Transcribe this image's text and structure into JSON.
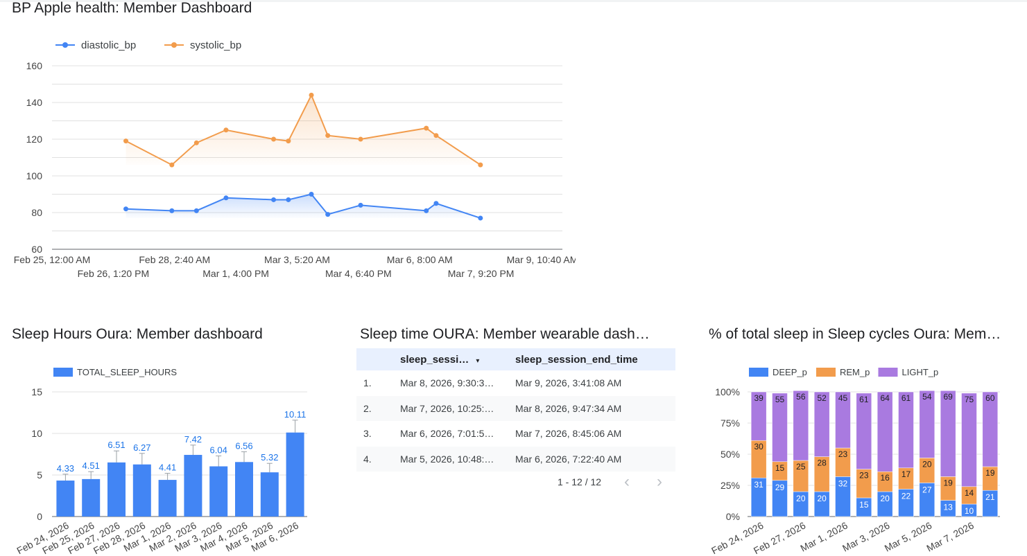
{
  "bp_chart": {
    "title": "BP Apple health: Member Dashboard",
    "chart_data": {
      "type": "line",
      "title": "BP Apple health: Member Dashboard",
      "y_ticks": [
        60,
        80,
        100,
        120,
        140,
        160
      ],
      "ylim": [
        60,
        160
      ],
      "x_tick_labels": [
        "Feb 25, 12:00 AM",
        "Feb 26, 1:20 PM",
        "Feb 28, 2:40 AM",
        "Mar 1, 4:00 PM",
        "Mar 3, 5:20 AM",
        "Mar 4, 6:40 PM",
        "Mar 6, 8:00 AM",
        "Mar 7, 9:20 PM",
        "Mar 9, 10:40 AM"
      ],
      "x_tick_times": [
        "2026-02-25T00:00",
        "2026-02-26T13:20",
        "2026-02-28T02:40",
        "2026-03-01T16:00",
        "2026-03-03T05:20",
        "2026-03-04T18:40",
        "2026-03-06T08:00",
        "2026-03-07T21:20",
        "2026-03-09T10:40"
      ],
      "legend": "top-left",
      "series": [
        {
          "name": "diastolic_bp",
          "color": "#4285f4",
          "points": [
            [
              "2026-02-26T21:00",
              82
            ],
            [
              "2026-02-28T01:00",
              81
            ],
            [
              "2026-02-28T16:00",
              81
            ],
            [
              "2026-03-01T10:00",
              88
            ],
            [
              "2026-03-02T15:00",
              87
            ],
            [
              "2026-03-03T00:00",
              87
            ],
            [
              "2026-03-03T14:00",
              90
            ],
            [
              "2026-03-04T00:00",
              79
            ],
            [
              "2026-03-04T20:00",
              84
            ],
            [
              "2026-03-06T12:00",
              81
            ],
            [
              "2026-03-06T18:00",
              85
            ],
            [
              "2026-03-07T21:00",
              77
            ]
          ]
        },
        {
          "name": "systolic_bp",
          "color": "#f29c4c",
          "points": [
            [
              "2026-02-26T21:00",
              119
            ],
            [
              "2026-02-28T01:00",
              106
            ],
            [
              "2026-02-28T16:00",
              118
            ],
            [
              "2026-03-01T10:00",
              125
            ],
            [
              "2026-03-02T15:00",
              120
            ],
            [
              "2026-03-03T00:00",
              119
            ],
            [
              "2026-03-03T14:00",
              144
            ],
            [
              "2026-03-04T00:00",
              122
            ],
            [
              "2026-03-04T20:00",
              120
            ],
            [
              "2026-03-06T12:00",
              126
            ],
            [
              "2026-03-06T18:00",
              122
            ],
            [
              "2026-03-07T21:00",
              106
            ]
          ]
        }
      ]
    }
  },
  "sleep_hours_chart": {
    "title": "Sleep Hours Oura: Member dashboard",
    "chart_data": {
      "type": "bar",
      "title": "Sleep Hours Oura: Member dashboard",
      "categories": [
        "Feb 24, 2026",
        "Feb 25, 2026",
        "Feb 27, 2026",
        "Feb 28, 2026",
        "Mar 1, 2026",
        "Mar 2, 2026",
        "Mar 3, 2026",
        "Mar 4, 2026",
        "Mar 5, 2026",
        "Mar 6, 2026"
      ],
      "series": [
        {
          "name": "TOTAL_SLEEP_HOURS",
          "color": "#4285f4",
          "values": [
            4.33,
            4.51,
            6.51,
            6.27,
            4.41,
            7.42,
            6.04,
            6.56,
            5.32,
            10.11
          ]
        }
      ],
      "error_bar_tops": [
        5.1,
        5.4,
        7.9,
        7.6,
        5.2,
        8.6,
        7.3,
        7.8,
        6.4,
        11.6
      ],
      "y_ticks": [
        0,
        5,
        10,
        15
      ],
      "ylim": [
        0,
        15
      ],
      "legend": "top-left"
    }
  },
  "sleep_table": {
    "title": "Sleep time OURA: Member wearable dash…",
    "columns": [
      "sleep_sessi…",
      "sleep_session_end_time"
    ],
    "sort_icon": "▾",
    "rows": [
      {
        "idx": "1.",
        "start": "Mar 8, 2026, 9:30:3…",
        "end": "Mar 9, 2026, 3:41:08 AM"
      },
      {
        "idx": "2.",
        "start": "Mar 7, 2026, 10:25:…",
        "end": "Mar 8, 2026, 9:47:34 AM"
      },
      {
        "idx": "3.",
        "start": "Mar 6, 2026, 7:01:5…",
        "end": "Mar 7, 2026, 8:45:06 AM"
      },
      {
        "idx": "4.",
        "start": "Mar 5, 2026, 10:48:…",
        "end": "Mar 6, 2026, 7:22:40 AM"
      }
    ],
    "pagination": "1 - 12 / 12",
    "prev": "‹",
    "next": "›"
  },
  "sleep_cycles_chart": {
    "title": "% of total sleep in Sleep cycles Oura: Mem…",
    "chart_data": {
      "type": "bar",
      "stacked": true,
      "title": "% of total sleep in Sleep cycles Oura: Mem…",
      "x_tick_labels": [
        "Feb 24, 2026",
        "Feb 27, 2026",
        "Mar 1, 2026",
        "Mar 3, 2026",
        "Mar 5, 2026",
        "Mar 7, 2026"
      ],
      "series": [
        {
          "name": "DEEP_p",
          "color": "#4285f4",
          "values": [
            31,
            29,
            20,
            20,
            32,
            15,
            20,
            22,
            27,
            13,
            10,
            21
          ]
        },
        {
          "name": "REM_p",
          "color": "#f29c4c",
          "values": [
            30,
            15,
            25,
            28,
            23,
            23,
            16,
            17,
            20,
            19,
            14,
            19
          ]
        },
        {
          "name": "LIGHT_p",
          "color": "#a97ae0",
          "values": [
            39,
            55,
            56,
            52,
            45,
            61,
            64,
            61,
            54,
            69,
            75,
            60
          ]
        }
      ],
      "y_ticks": [
        "0%",
        "25%",
        "50%",
        "75%",
        "100%"
      ],
      "legend": "top-left"
    }
  }
}
